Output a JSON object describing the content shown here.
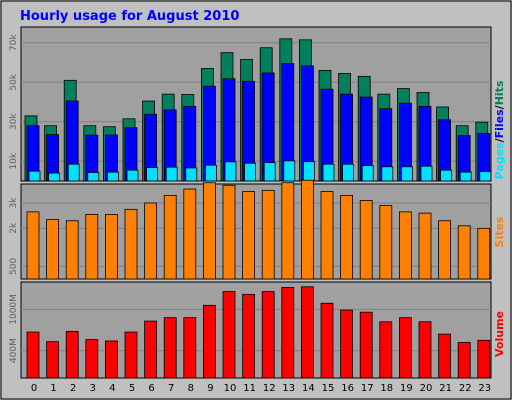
{
  "colors": {
    "background": "#c0c0c0",
    "plot_background": "#a0a0a0",
    "title": "#0000ff",
    "hits": "#00805c",
    "files": "#0000ff",
    "pages": "#00e0ff",
    "sites": "#ff8000",
    "volume": "#ff0000",
    "gridline": "#808080"
  },
  "chart_data": [
    {
      "type": "bar",
      "panel": "hits-files-pages",
      "title": "Hourly usage for August 2010",
      "categories": [
        "0",
        "1",
        "2",
        "3",
        "4",
        "5",
        "6",
        "7",
        "8",
        "9",
        "10",
        "11",
        "12",
        "13",
        "14",
        "15",
        "16",
        "17",
        "18",
        "19",
        "20",
        "21",
        "22",
        "23"
      ],
      "ylabel_parts": [
        "Pages",
        "/",
        "Files",
        "/",
        "Hits"
      ],
      "ytick_labels": [
        "70k",
        "50k",
        "30k",
        "10k"
      ],
      "ytick_values": [
        70000,
        50000,
        30000,
        10000
      ],
      "ylim": [
        0,
        78000
      ],
      "grid": true,
      "series": [
        {
          "name": "Hits",
          "values": [
            33000,
            28000,
            51000,
            28000,
            27500,
            31500,
            40500,
            44000,
            43800,
            57000,
            65000,
            61500,
            67500,
            72000,
            71500,
            56000,
            54500,
            53000,
            44000,
            46800,
            44800,
            37500,
            28000,
            29800
          ]
        },
        {
          "name": "Files",
          "values": [
            28000,
            23500,
            40500,
            23200,
            23300,
            27000,
            33800,
            36000,
            37800,
            48000,
            51800,
            50500,
            54700,
            59500,
            58300,
            46500,
            44000,
            42500,
            36600,
            39400,
            37800,
            31000,
            23000,
            24000
          ]
        },
        {
          "name": "Pages",
          "values": [
            5000,
            4000,
            8500,
            4300,
            4500,
            5500,
            6800,
            7000,
            6600,
            8000,
            9700,
            9000,
            9300,
            10200,
            9800,
            8500,
            8500,
            7800,
            7200,
            7200,
            7500,
            5500,
            4500,
            4800
          ]
        }
      ]
    },
    {
      "type": "bar",
      "panel": "sites",
      "categories": [
        "0",
        "1",
        "2",
        "3",
        "4",
        "5",
        "6",
        "7",
        "8",
        "9",
        "10",
        "11",
        "12",
        "13",
        "14",
        "15",
        "16",
        "17",
        "18",
        "19",
        "20",
        "21",
        "22",
        "23"
      ],
      "ylabel": "Sites",
      "ytick_labels": [
        "3k",
        "2k",
        "500"
      ],
      "ytick_values": [
        3000,
        2000,
        500
      ],
      "ylim": [
        0,
        3750
      ],
      "grid": true,
      "series": [
        {
          "name": "Sites",
          "values": [
            2650,
            2350,
            2300,
            2550,
            2550,
            2750,
            3000,
            3300,
            3550,
            3800,
            3700,
            3450,
            3500,
            3800,
            3900,
            3450,
            3300,
            3100,
            2900,
            2650,
            2600,
            2300,
            2100,
            2000
          ]
        }
      ]
    },
    {
      "type": "bar",
      "panel": "volume",
      "categories": [
        "0",
        "1",
        "2",
        "3",
        "4",
        "5",
        "6",
        "7",
        "8",
        "9",
        "10",
        "11",
        "12",
        "13",
        "14",
        "15",
        "16",
        "17",
        "18",
        "19",
        "20",
        "21",
        "22",
        "23"
      ],
      "ylabel": "Volume",
      "ytick_labels": [
        "1000M",
        "400M"
      ],
      "ytick_values": [
        1000,
        400
      ],
      "ylim": [
        0,
        1400
      ],
      "grid": true,
      "series": [
        {
          "name": "Volume",
          "values": [
            670,
            530,
            680,
            560,
            540,
            670,
            830,
            880,
            880,
            1060,
            1260,
            1220,
            1260,
            1320,
            1330,
            1090,
            990,
            960,
            820,
            880,
            820,
            640,
            520,
            550
          ]
        }
      ]
    }
  ]
}
